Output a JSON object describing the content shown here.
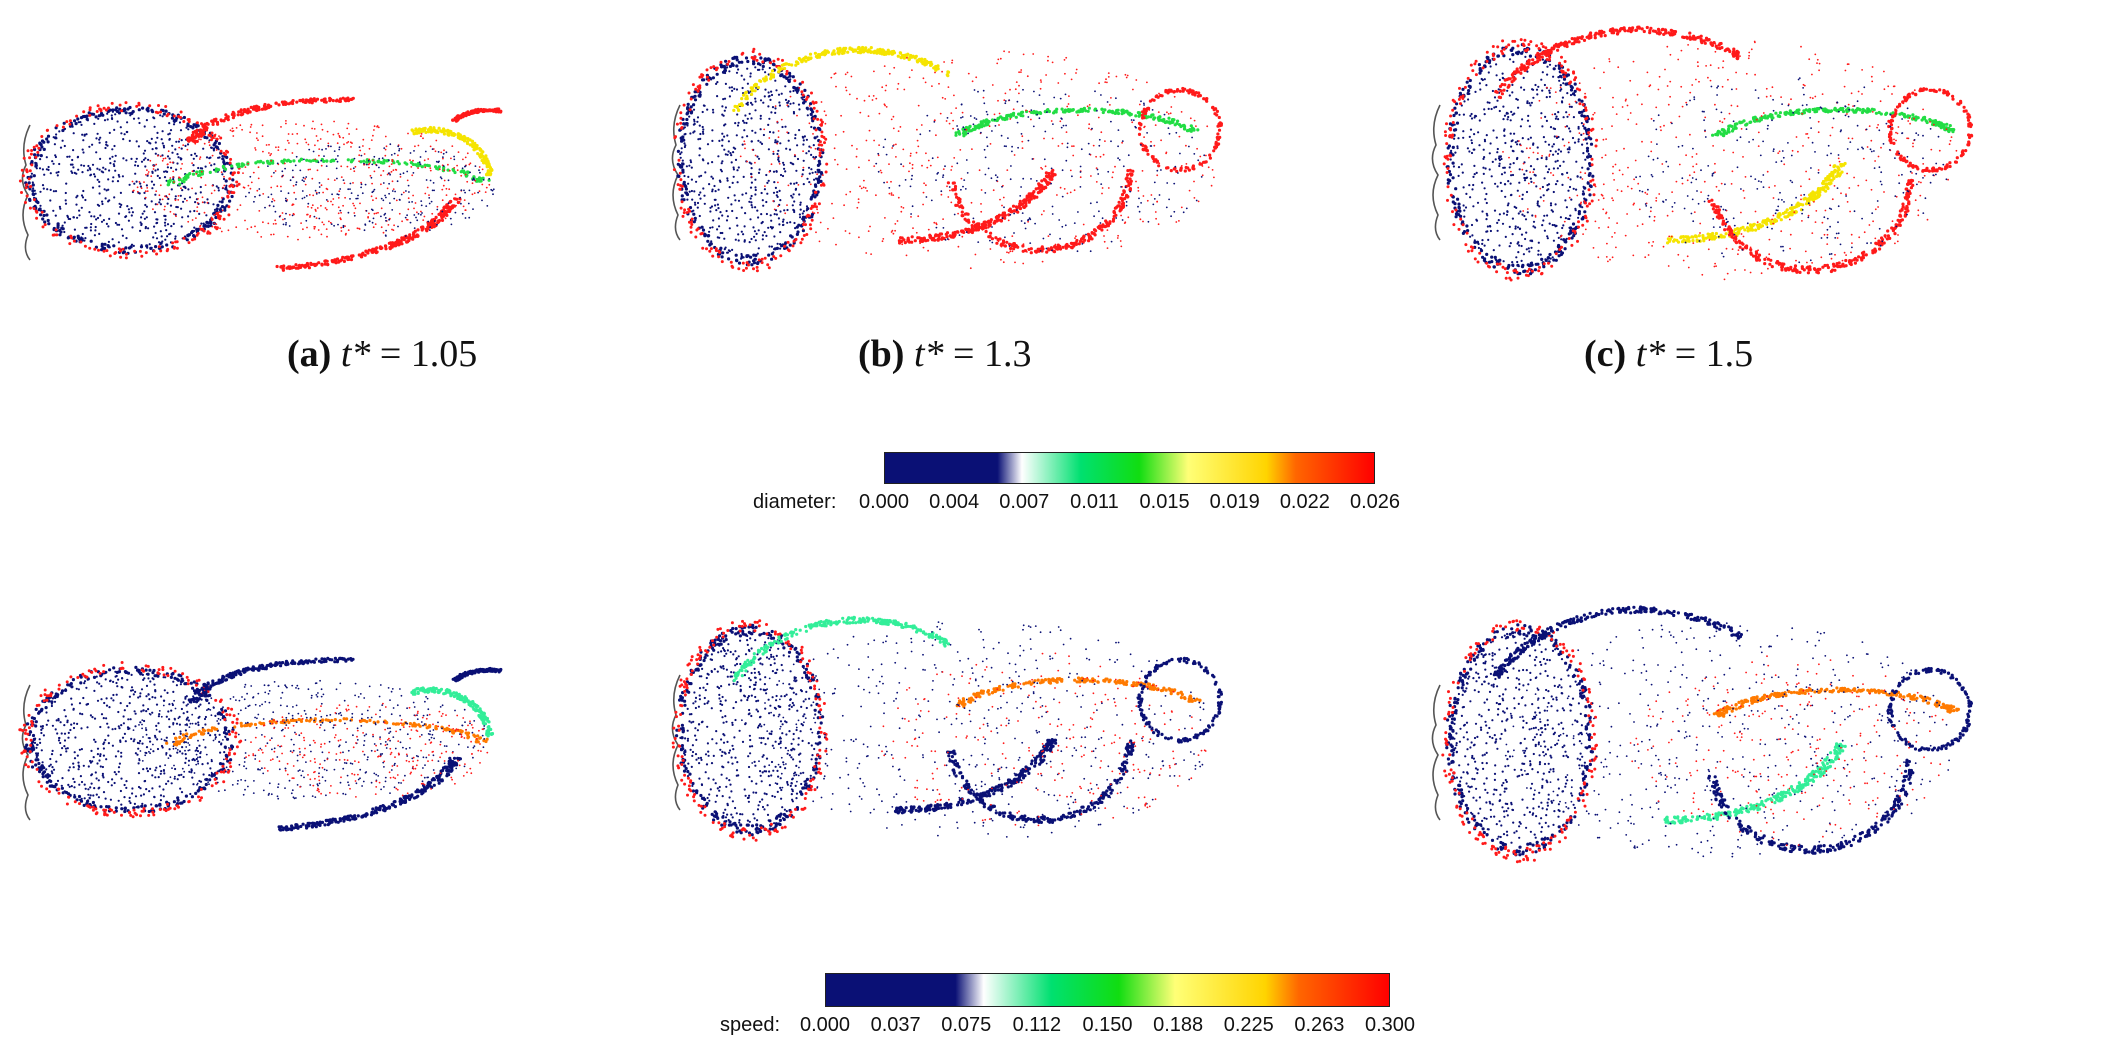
{
  "figure": {
    "captions": [
      {
        "label": "(a)",
        "var": "t*",
        "eq": " = 1.05"
      },
      {
        "label": "(b)",
        "var": "t*",
        "eq": " = 1.3"
      },
      {
        "label": "(c)",
        "var": "t*",
        "eq": " = 1.5"
      }
    ],
    "colorbars": [
      {
        "title": "diameter:",
        "ticks": [
          "0.000",
          "0.004",
          "0.007",
          "0.011",
          "0.015",
          "0.019",
          "0.022",
          "0.026"
        ],
        "colors": [
          "#0a1075",
          "#0a1075",
          "#ffffff",
          "#00e070",
          "#11dd11",
          "#ffff77",
          "#ffd400",
          "#ff6600",
          "#ff0000"
        ]
      },
      {
        "title": "speed:",
        "ticks": [
          "0.000",
          "0.037",
          "0.075",
          "0.112",
          "0.150",
          "0.188",
          "0.225",
          "0.263",
          "0.300"
        ],
        "colors": [
          "#0a1075",
          "#0a1075",
          "#ffffff",
          "#00e070",
          "#11dd11",
          "#ffff77",
          "#ffd400",
          "#ff6600",
          "#ff0000"
        ]
      }
    ],
    "palette": {
      "dark_blue": "#0a1075",
      "red": "#ff1a1a",
      "orange": "#ff7a00",
      "yellow": "#f5e400",
      "green": "#22dd44",
      "teal": "#33ee99",
      "body_outline": "#555555"
    }
  }
}
